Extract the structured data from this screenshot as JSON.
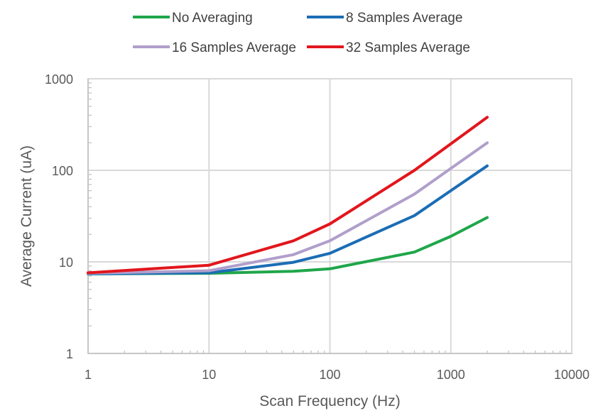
{
  "chart_data": {
    "type": "line",
    "xscale": "log",
    "yscale": "log",
    "xlim": [
      1,
      10000
    ],
    "ylim": [
      1,
      1000
    ],
    "xlabel": "Scan Frequency (Hz)",
    "ylabel": "Average Current (uA)",
    "x_ticks": [
      "1",
      "10",
      "100",
      "1000",
      "10000"
    ],
    "y_ticks": [
      "1",
      "10",
      "100",
      "1000"
    ],
    "grid": true,
    "legend_position": "top",
    "series": [
      {
        "name": "No Averaging",
        "color": "#1fa64a",
        "x": [
          1,
          10,
          50,
          100,
          500,
          1000,
          2000
        ],
        "y": [
          7.4,
          7.5,
          7.9,
          8.4,
          12.8,
          19,
          30.5
        ]
      },
      {
        "name": "8 Samples Average",
        "color": "#1b6db5",
        "x": [
          1,
          10,
          50,
          100,
          500,
          1000,
          2000
        ],
        "y": [
          7.4,
          7.6,
          9.9,
          12.4,
          32,
          60,
          112
        ]
      },
      {
        "name": "16 Samples Average",
        "color": "#b09fcb",
        "x": [
          1,
          10,
          50,
          100,
          500,
          1000,
          2000
        ],
        "y": [
          7.5,
          8.0,
          12.0,
          17,
          55,
          105,
          200
        ]
      },
      {
        "name": "32 Samples Average",
        "color": "#e2161d",
        "x": [
          1,
          10,
          50,
          100,
          500,
          1000,
          2000
        ],
        "y": [
          7.6,
          9.2,
          17,
          26,
          100,
          195,
          380
        ]
      }
    ]
  }
}
